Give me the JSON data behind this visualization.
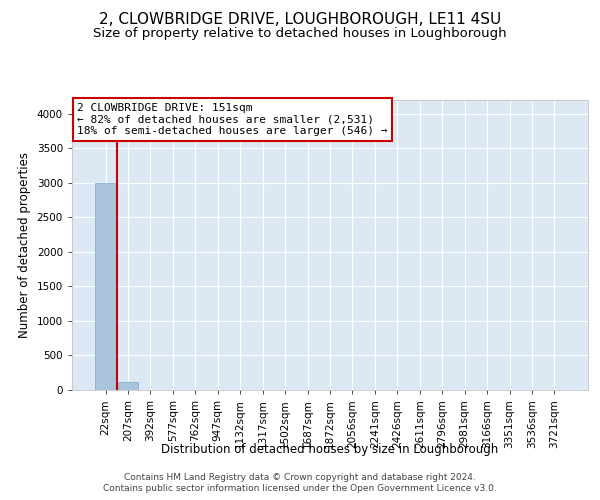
{
  "title": "2, CLOWBRIDGE DRIVE, LOUGHBOROUGH, LE11 4SU",
  "subtitle": "Size of property relative to detached houses in Loughborough",
  "xlabel": "Distribution of detached houses by size in Loughborough",
  "ylabel": "Number of detached properties",
  "footer_line1": "Contains HM Land Registry data © Crown copyright and database right 2024.",
  "footer_line2": "Contains public sector information licensed under the Open Government Licence v3.0.",
  "bar_labels": [
    "22sqm",
    "207sqm",
    "392sqm",
    "577sqm",
    "762sqm",
    "947sqm",
    "1132sqm",
    "1317sqm",
    "1502sqm",
    "1687sqm",
    "1872sqm",
    "2056sqm",
    "2241sqm",
    "2426sqm",
    "2611sqm",
    "2796sqm",
    "2981sqm",
    "3166sqm",
    "3351sqm",
    "3536sqm",
    "3721sqm"
  ],
  "bar_values": [
    3000,
    110,
    5,
    2,
    1,
    1,
    0,
    0,
    0,
    0,
    0,
    0,
    0,
    0,
    0,
    0,
    0,
    0,
    0,
    0,
    0
  ],
  "bar_color": "#aac4dd",
  "bar_edge_color": "#7aaac8",
  "background_color": "#dce9f5",
  "grid_color": "#ffffff",
  "ylim": [
    0,
    4200
  ],
  "yticks": [
    0,
    500,
    1000,
    1500,
    2000,
    2500,
    3000,
    3500,
    4000
  ],
  "vline_color": "#cc0000",
  "vline_x": 0.5,
  "annotation_title": "2 CLOWBRIDGE DRIVE: 151sqm",
  "annotation_line2": "← 82% of detached houses are smaller (2,531)",
  "annotation_line3": "18% of semi-detached houses are larger (546) →",
  "annotation_box_color": "#cc0000",
  "title_fontsize": 11,
  "subtitle_fontsize": 9.5,
  "axis_label_fontsize": 8.5,
  "tick_fontsize": 7.5,
  "annotation_fontsize": 8,
  "footer_fontsize": 6.5
}
